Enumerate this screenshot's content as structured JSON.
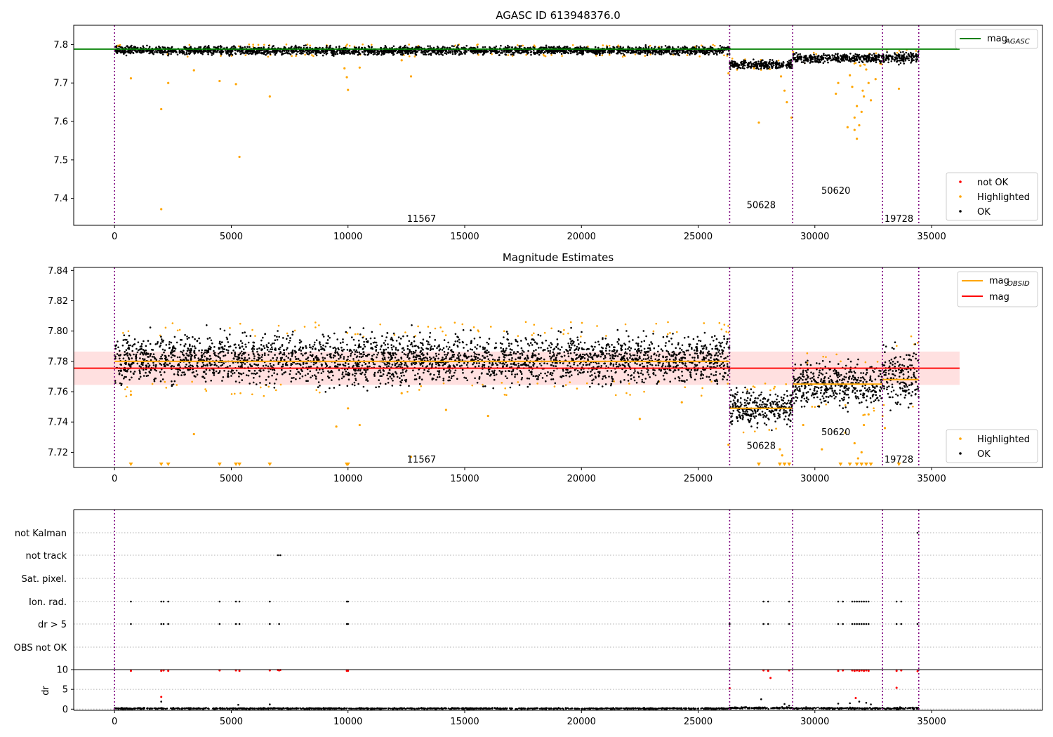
{
  "chart_data": [
    {
      "type": "scatter",
      "title": "AGASC ID 613948376.0",
      "xlabel": "",
      "ylabel": "",
      "xlim": [
        -1750,
        39750
      ],
      "ylim": [
        7.33,
        7.85
      ],
      "x_ticks": [
        0,
        5000,
        10000,
        15000,
        20000,
        25000,
        30000,
        35000
      ],
      "y_ticks": [
        7.4,
        7.5,
        7.6,
        7.7,
        7.8
      ],
      "grid": false,
      "obsid_boundaries": [
        0,
        26350,
        29050,
        32900,
        34450
      ],
      "obsid_labels": [
        {
          "text": "11567",
          "x": 13150,
          "y": 7.348
        },
        {
          "text": "50628",
          "x": 27700,
          "y": 7.384
        },
        {
          "text": "50620",
          "x": 30900,
          "y": 7.421
        },
        {
          "text": "19728",
          "x": 33600,
          "y": 7.348
        }
      ],
      "series": [
        {
          "name": "mag$_{AGASC}$",
          "kind": "hline",
          "color": "#008000",
          "y": 7.788,
          "x_range": [
            -1750,
            36200
          ]
        },
        {
          "name": "OK",
          "kind": "band",
          "color": "#000000",
          "segments": [
            {
              "x": [
                0,
                26350
              ],
              "y": [
                7.775,
                7.794
              ]
            },
            {
              "x": [
                26350,
                29050
              ],
              "y": [
                7.738,
                7.758
              ]
            },
            {
              "x": [
                29050,
                32900
              ],
              "y": [
                7.754,
                7.774
              ]
            },
            {
              "x": [
                32900,
                34450
              ],
              "y": [
                7.753,
                7.778
              ]
            }
          ]
        },
        {
          "name": "Highlighted",
          "kind": "points",
          "color": "#ffa500",
          "points": [
            [
              2000,
              7.632
            ],
            [
              2000,
              7.372
            ],
            [
              2300,
              7.7
            ],
            [
              700,
              7.712
            ],
            [
              3400,
              7.733
            ],
            [
              4500,
              7.705
            ],
            [
              5200,
              7.697
            ],
            [
              5350,
              7.508
            ],
            [
              6650,
              7.665
            ],
            [
              9950,
              7.715
            ],
            [
              10000,
              7.682
            ],
            [
              9850,
              7.738
            ],
            [
              10500,
              7.74
            ],
            [
              12700,
              7.717
            ],
            [
              12300,
              7.759
            ],
            [
              27600,
              7.597
            ],
            [
              28550,
              7.717
            ],
            [
              28700,
              7.68
            ],
            [
              28800,
              7.65
            ],
            [
              29000,
              7.61
            ],
            [
              26300,
              7.725
            ],
            [
              27400,
              7.738
            ],
            [
              30900,
              7.672
            ],
            [
              31000,
              7.7
            ],
            [
              31400,
              7.585
            ],
            [
              31700,
              7.578
            ],
            [
              31800,
              7.555
            ],
            [
              31900,
              7.59
            ],
            [
              32000,
              7.625
            ],
            [
              31800,
              7.64
            ],
            [
              32100,
              7.665
            ],
            [
              31600,
              7.69
            ],
            [
              32300,
              7.7
            ],
            [
              31500,
              7.72
            ],
            [
              32400,
              7.655
            ],
            [
              32200,
              7.735
            ],
            [
              32600,
              7.71
            ],
            [
              33600,
              7.685
            ],
            [
              31700,
              7.61
            ],
            [
              32050,
              7.68
            ],
            [
              31950,
              7.745
            ]
          ]
        },
        {
          "name": "not OK",
          "kind": "points",
          "color": "#ff0000",
          "points": []
        }
      ],
      "legends": [
        {
          "position": "upper-right",
          "entries": [
            {
              "name": "mag",
              "sub": "AGASC",
              "color": "#008000",
              "kind": "line"
            }
          ]
        },
        {
          "position": "lower-right",
          "entries": [
            {
              "name": "not OK",
              "color": "#ff0000",
              "kind": "dot"
            },
            {
              "name": "Highlighted",
              "color": "#ffa500",
              "kind": "dot"
            },
            {
              "name": "OK",
              "color": "#000000",
              "kind": "dot"
            }
          ]
        }
      ]
    },
    {
      "type": "scatter",
      "title": "Magnitude Estimates",
      "xlabel": "",
      "ylabel": "",
      "xlim": [
        -1750,
        39750
      ],
      "ylim": [
        7.71,
        7.842
      ],
      "x_ticks": [
        0,
        5000,
        10000,
        15000,
        20000,
        25000,
        30000,
        35000
      ],
      "y_ticks": [
        7.72,
        7.74,
        7.76,
        7.78,
        7.8,
        7.82,
        7.84
      ],
      "grid": false,
      "obsid_boundaries": [
        0,
        26350,
        29050,
        32900,
        34450
      ],
      "obsid_labels": [
        {
          "text": "11567",
          "x": 13150,
          "y": 7.7155
        },
        {
          "text": "50628",
          "x": 27700,
          "y": 7.7247
        },
        {
          "text": "50620",
          "x": 30900,
          "y": 7.7337
        },
        {
          "text": "19728",
          "x": 33600,
          "y": 7.7155
        }
      ],
      "mag_band": {
        "x": [
          -1750,
          36200
        ],
        "y": [
          7.7645,
          7.7865
        ]
      },
      "series": [
        {
          "name": "mag",
          "kind": "hline",
          "color": "#ff0000",
          "y": 7.7755,
          "x_range": [
            -1750,
            36200
          ]
        },
        {
          "name": "mag$_{OBSID}$",
          "kind": "steps",
          "color": "#ffa500",
          "segments": [
            {
              "x": [
                0,
                26350
              ],
              "y": 7.78
            },
            {
              "x": [
                26350,
                29050
              ],
              "y": 7.749
            },
            {
              "x": [
                29050,
                32900
              ],
              "y": 7.765
            },
            {
              "x": [
                32900,
                34450
              ],
              "y": 7.768
            }
          ]
        },
        {
          "name": "OK",
          "kind": "band",
          "color": "#000000",
          "segments": [
            {
              "x": [
                0,
                26350
              ],
              "y": [
                7.767,
                7.796
              ]
            },
            {
              "x": [
                26350,
                29050
              ],
              "y": [
                7.739,
                7.76
              ]
            },
            {
              "x": [
                29050,
                32900
              ],
              "y": [
                7.752,
                7.778
              ]
            },
            {
              "x": [
                32900,
                34450
              ],
              "y": [
                7.752,
                7.786
              ]
            }
          ]
        },
        {
          "name": "Highlighted",
          "kind": "points",
          "color": "#ffa500",
          "points": [
            [
              3400,
              7.732
            ],
            [
              9500,
              7.737
            ],
            [
              10000,
              7.749
            ],
            [
              10500,
              7.738
            ],
            [
              12700,
              7.717
            ],
            [
              12300,
              7.759
            ],
            [
              14200,
              7.748
            ],
            [
              16000,
              7.744
            ],
            [
              22500,
              7.742
            ],
            [
              24300,
              7.753
            ],
            [
              700,
              7.758
            ],
            [
              30300,
              7.722
            ],
            [
              31300,
              7.733
            ],
            [
              31700,
              7.726
            ],
            [
              32000,
              7.72
            ],
            [
              31850,
              7.716
            ],
            [
              32100,
              7.738
            ],
            [
              32300,
              7.745
            ],
            [
              29500,
              7.738
            ],
            [
              26300,
              7.725
            ],
            [
              33000,
              7.736
            ],
            [
              28600,
              7.718
            ],
            [
              28500,
              7.722
            ]
          ]
        },
        {
          "name": "below-limit markers",
          "kind": "down-triangles",
          "color": "#ffa500",
          "x": [
            700,
            2000,
            2300,
            4500,
            5200,
            5350,
            6650,
            9950,
            10000,
            27600,
            28500,
            28700,
            28900,
            31100,
            31500,
            31800,
            32000,
            32200,
            32400,
            33600
          ]
        }
      ],
      "legends": [
        {
          "position": "upper-right",
          "entries": [
            {
              "name": "mag",
              "sub": "OBSID",
              "color": "#ffa500",
              "kind": "line"
            },
            {
              "name": "mag",
              "color": "#ff0000",
              "kind": "line"
            }
          ]
        },
        {
          "position": "lower-right",
          "entries": [
            {
              "name": "Highlighted",
              "color": "#ffa500",
              "kind": "dot"
            },
            {
              "name": "OK",
              "color": "#000000",
              "kind": "dot"
            }
          ]
        }
      ]
    },
    {
      "type": "scatter",
      "title": "",
      "xlabel": "",
      "ylabel": "",
      "xlim": [
        -1750,
        39750
      ],
      "categories": [
        "not Kalman",
        "not track",
        "Sat. pixel.",
        "Ion. rad.",
        "dr > 5",
        "OBS not OK"
      ],
      "grid": true,
      "obsid_boundaries": [
        0,
        26350,
        29050,
        32900,
        34450
      ],
      "flag_points": {
        "not Kalman": [
          34400
        ],
        "not track": [
          7000,
          7100
        ],
        "Sat. pixel.": [],
        "Ion. rad.": [
          700,
          2000,
          2100,
          2300,
          4500,
          5200,
          5350,
          6650,
          9950,
          10000,
          27800,
          28000,
          28900,
          31000,
          31200,
          31600,
          31700,
          31800,
          31900,
          32000,
          32100,
          32200,
          32300,
          33500,
          33700
        ],
        "dr > 5": [
          700,
          2000,
          2100,
          2300,
          4500,
          5200,
          5350,
          6650,
          7050,
          9950,
          10000,
          26350,
          27800,
          28000,
          28900,
          31000,
          31200,
          31600,
          31700,
          31800,
          31900,
          32000,
          32100,
          32200,
          32300,
          33500,
          33700,
          34400
        ],
        "OBS not OK": []
      }
    },
    {
      "type": "scatter",
      "title": "",
      "xlabel": "",
      "ylabel": "dr",
      "xlim": [
        -1750,
        39750
      ],
      "ylim": [
        -0.3,
        10
      ],
      "x_ticks": [
        0,
        5000,
        10000,
        15000,
        20000,
        25000,
        30000,
        35000
      ],
      "y_ticks": [
        0,
        5,
        10
      ],
      "grid": true,
      "obsid_boundaries": [
        0,
        26350,
        29050,
        32900,
        34450
      ],
      "series": [
        {
          "name": "OK",
          "kind": "band",
          "color": "#000000",
          "segments": [
            {
              "x": [
                0,
                26350
              ],
              "y": [
                0.0,
                0.3
              ]
            },
            {
              "x": [
                26350,
                29050
              ],
              "y": [
                0.1,
                0.5
              ]
            },
            {
              "x": [
                29050,
                32900
              ],
              "y": [
                0.0,
                0.4
              ]
            },
            {
              "x": [
                32900,
                34450
              ],
              "y": [
                0.0,
                0.4
              ]
            }
          ]
        },
        {
          "name": "not OK",
          "kind": "points",
          "color": "#ff0000",
          "points": [
            [
              700,
              9.7
            ],
            [
              2000,
              9.7
            ],
            [
              2100,
              9.8
            ],
            [
              2000,
              3.1
            ],
            [
              2300,
              9.7
            ],
            [
              4500,
              9.8
            ],
            [
              5200,
              9.8
            ],
            [
              5350,
              9.7
            ],
            [
              6650,
              9.8
            ],
            [
              7000,
              9.9
            ],
            [
              7050,
              9.8
            ],
            [
              7100,
              9.9
            ],
            [
              9950,
              9.7
            ],
            [
              10000,
              9.7
            ],
            [
              26350,
              5.3
            ],
            [
              27800,
              9.8
            ],
            [
              28000,
              9.7
            ],
            [
              28100,
              7.9
            ],
            [
              28900,
              9.8
            ],
            [
              31000,
              9.7
            ],
            [
              31200,
              9.8
            ],
            [
              31600,
              9.8
            ],
            [
              31700,
              9.7
            ],
            [
              31800,
              9.8
            ],
            [
              31900,
              9.7
            ],
            [
              32000,
              9.8
            ],
            [
              32100,
              9.7
            ],
            [
              32200,
              9.8
            ],
            [
              32300,
              9.7
            ],
            [
              31750,
              2.8
            ],
            [
              33500,
              9.7
            ],
            [
              33700,
              9.8
            ],
            [
              33500,
              5.4
            ],
            [
              34400,
              9.6
            ]
          ]
        },
        {
          "name": "OK scattered",
          "kind": "points",
          "color": "#000000",
          "points": [
            [
              2000,
              1.9
            ],
            [
              5300,
              1.1
            ],
            [
              6650,
              1.2
            ],
            [
              27700,
              2.5
            ],
            [
              28700,
              1.3
            ],
            [
              31000,
              1.4
            ],
            [
              31500,
              1.5
            ],
            [
              31900,
              1.9
            ],
            [
              32200,
              1.6
            ],
            [
              32400,
              1.2
            ],
            [
              28900,
              0.9
            ]
          ]
        }
      ]
    }
  ]
}
